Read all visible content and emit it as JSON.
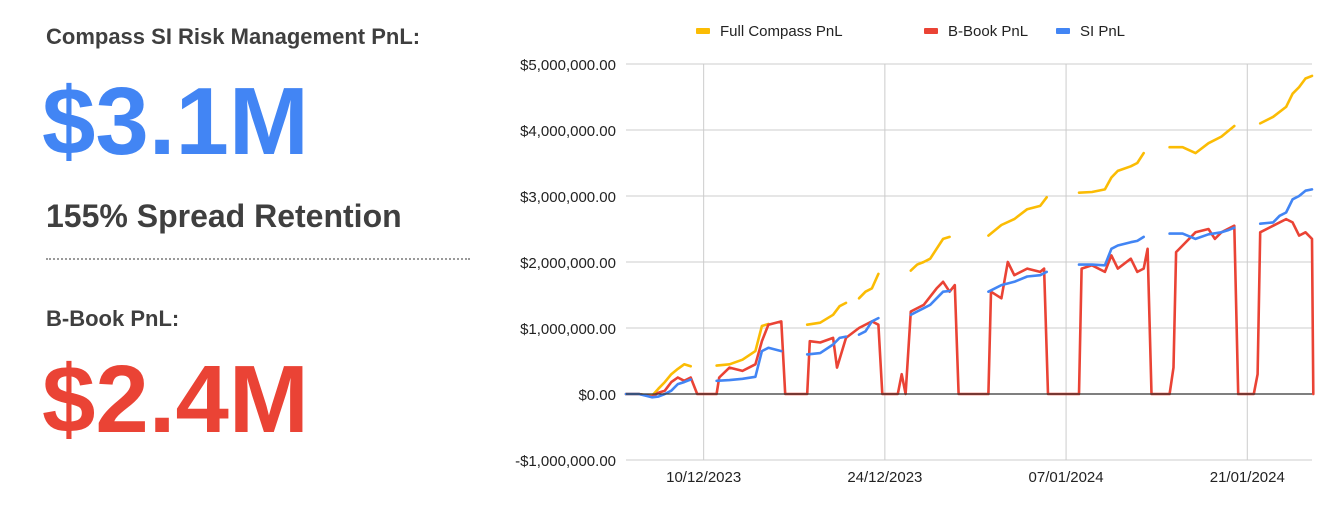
{
  "kpis": {
    "primary_label": "Compass SI Risk Management PnL:",
    "primary_value": "$3.1M",
    "primary_color": "#4285f4",
    "retention": "155% Spread Retention",
    "secondary_label": "B-Book PnL:",
    "secondary_value": "$2.4M",
    "secondary_color": "#ea4335"
  },
  "chart_data": {
    "type": "line",
    "title": "",
    "xlabel": "",
    "ylabel": "",
    "ylim": [
      -1000000,
      5000000
    ],
    "y_ticks": [
      -1000000,
      0,
      1000000,
      2000000,
      3000000,
      4000000,
      5000000
    ],
    "y_tick_labels": [
      "-$1,000,000.00",
      "$0.00",
      "$1,000,000.00",
      "$2,000,000.00",
      "$3,000,000.00",
      "$4,000,000.00",
      "$5,000,000.00"
    ],
    "x_range": [
      "2023-12-04",
      "2024-01-26"
    ],
    "x_ticks": [
      "2023-12-10",
      "2023-12-24",
      "2024-01-07",
      "2024-01-21"
    ],
    "x_tick_labels": [
      "10/12/2023",
      "24/12/2023",
      "07/01/2024",
      "21/01/2024"
    ],
    "grid": true,
    "legend_position": "top",
    "series": [
      {
        "name": "Full Compass PnL",
        "color": "#fbbc04",
        "points": [
          [
            [
              "2023-12-04",
              0
            ],
            [
              "2023-12-05",
              0
            ],
            [
              "2023-12-06",
              -30000
            ],
            [
              "2023-12-06.5",
              80000
            ],
            [
              "2023-12-07",
              180000
            ],
            [
              "2023-12-07.5",
              300000
            ],
            [
              "2023-12-08",
              380000
            ],
            [
              "2023-12-08.5",
              450000
            ],
            [
              "2023-12-09",
              420000
            ]
          ],
          [
            [
              "2023-12-11",
              430000
            ],
            [
              "2023-12-12",
              450000
            ],
            [
              "2023-12-13",
              520000
            ],
            [
              "2023-12-14",
              650000
            ],
            [
              "2023-12-14.5",
              1030000
            ],
            [
              "2023-12-15",
              1060000
            ]
          ],
          [
            [
              "2023-12-18",
              1050000
            ],
            [
              "2023-12-19",
              1080000
            ],
            [
              "2023-12-20",
              1200000
            ],
            [
              "2023-12-20.5",
              1330000
            ],
            [
              "2023-12-21",
              1380000
            ]
          ],
          [
            [
              "2023-12-22",
              1450000
            ],
            [
              "2023-12-22.5",
              1550000
            ],
            [
              "2023-12-23",
              1600000
            ],
            [
              "2023-12-23.5",
              1820000
            ]
          ],
          [
            [
              "2023-12-26",
              1870000
            ],
            [
              "2023-12-26.5",
              1960000
            ],
            [
              "2023-12-27",
              2000000
            ],
            [
              "2023-12-27.5",
              2050000
            ],
            [
              "2023-12-28",
              2200000
            ],
            [
              "2023-12-28.5",
              2350000
            ],
            [
              "2023-12-29",
              2380000
            ]
          ],
          [
            [
              "2024-01-01",
              2400000
            ],
            [
              "2024-01-02",
              2560000
            ],
            [
              "2024-01-03",
              2650000
            ],
            [
              "2024-01-04",
              2800000
            ],
            [
              "2024-01-05",
              2850000
            ],
            [
              "2024-01-05.5",
              2980000
            ]
          ],
          [
            [
              "2024-01-08",
              3050000
            ],
            [
              "2024-01-09",
              3060000
            ],
            [
              "2024-01-10",
              3100000
            ],
            [
              "2024-01-10.5",
              3280000
            ],
            [
              "2024-01-11",
              3380000
            ],
            [
              "2024-01-12",
              3450000
            ],
            [
              "2024-01-12.5",
              3500000
            ],
            [
              "2024-01-13",
              3650000
            ]
          ],
          [
            [
              "2024-01-15",
              3740000
            ],
            [
              "2024-01-16",
              3740000
            ],
            [
              "2024-01-17",
              3650000
            ],
            [
              "2024-01-18",
              3800000
            ],
            [
              "2024-01-19",
              3900000
            ],
            [
              "2024-01-19.5",
              3980000
            ],
            [
              "2024-01-20",
              4060000
            ]
          ],
          [
            [
              "2024-01-22",
              4100000
            ],
            [
              "2024-01-23",
              4200000
            ],
            [
              "2024-01-24",
              4350000
            ],
            [
              "2024-01-24.5",
              4550000
            ],
            [
              "2024-01-25",
              4650000
            ],
            [
              "2024-01-25.5",
              4780000
            ],
            [
              "2024-01-26",
              4820000
            ]
          ]
        ]
      },
      {
        "name": "B-Book PnL",
        "color": "#ea4335",
        "points": [
          [
            [
              "2023-12-04",
              0
            ],
            [
              "2023-12-05",
              0
            ],
            [
              "2023-12-06",
              -40000
            ],
            [
              "2023-12-06.5",
              20000
            ],
            [
              "2023-12-07",
              50000
            ],
            [
              "2023-12-07.5",
              180000
            ],
            [
              "2023-12-08",
              250000
            ],
            [
              "2023-12-08.5",
              200000
            ],
            [
              "2023-12-09",
              250000
            ],
            [
              "2023-12-09.5",
              0
            ],
            [
              "2023-12-10",
              0
            ],
            [
              "2023-12-11",
              0
            ],
            [
              "2023-12-11.2",
              250000
            ],
            [
              "2023-12-12",
              400000
            ],
            [
              "2023-12-13",
              350000
            ],
            [
              "2023-12-14",
              450000
            ],
            [
              "2023-12-14.5",
              800000
            ],
            [
              "2023-12-15",
              1050000
            ],
            [
              "2023-12-16",
              1100000
            ],
            [
              "2023-12-16.3",
              0
            ],
            [
              "2023-12-17",
              0
            ],
            [
              "2023-12-18",
              0
            ],
            [
              "2023-12-18.2",
              800000
            ],
            [
              "2023-12-19",
              780000
            ],
            [
              "2023-12-20",
              850000
            ],
            [
              "2023-12-20.3",
              400000
            ],
            [
              "2023-12-21",
              850000
            ],
            [
              "2023-12-22",
              1000000
            ],
            [
              "2023-12-23",
              1100000
            ],
            [
              "2023-12-23.5",
              1050000
            ],
            [
              "2023-12-23.8",
              0
            ],
            [
              "2023-12-24",
              0
            ],
            [
              "2023-12-25",
              0
            ],
            [
              "2023-12-25.3",
              300000
            ],
            [
              "2023-12-25.6",
              0
            ],
            [
              "2023-12-26",
              1250000
            ],
            [
              "2023-12-27",
              1350000
            ],
            [
              "2023-12-28",
              1600000
            ],
            [
              "2023-12-28.5",
              1700000
            ],
            [
              "2023-12-29",
              1550000
            ],
            [
              "2023-12-29.4",
              1650000
            ],
            [
              "2023-12-29.7",
              0
            ],
            [
              "2023-12-30",
              0
            ],
            [
              "2024-01-01",
              0
            ],
            [
              "2024-01-01.2",
              1550000
            ],
            [
              "2024-01-02",
              1450000
            ],
            [
              "2024-01-02.5",
              2000000
            ],
            [
              "2024-01-03",
              1800000
            ],
            [
              "2024-01-04",
              1900000
            ],
            [
              "2024-01-05",
              1850000
            ],
            [
              "2024-01-05.3",
              1900000
            ],
            [
              "2024-01-05.6",
              0
            ],
            [
              "2024-01-06",
              0
            ],
            [
              "2024-01-07",
              0
            ],
            [
              "2024-01-08",
              0
            ],
            [
              "2024-01-08.2",
              1900000
            ],
            [
              "2024-01-09",
              1950000
            ],
            [
              "2024-01-10",
              1850000
            ],
            [
              "2024-01-10.5",
              2100000
            ],
            [
              "2024-01-11",
              1900000
            ],
            [
              "2024-01-12",
              2050000
            ],
            [
              "2024-01-12.5",
              1850000
            ],
            [
              "2024-01-13",
              1900000
            ],
            [
              "2024-01-13.3",
              2200000
            ],
            [
              "2024-01-13.6",
              0
            ],
            [
              "2024-01-14",
              0
            ],
            [
              "2024-01-15",
              0
            ],
            [
              "2024-01-15.3",
              400000
            ],
            [
              "2024-01-15.5",
              2150000
            ],
            [
              "2024-01-16",
              2250000
            ],
            [
              "2024-01-17",
              2450000
            ],
            [
              "2024-01-18",
              2500000
            ],
            [
              "2024-01-18.5",
              2350000
            ],
            [
              "2024-01-19",
              2450000
            ],
            [
              "2024-01-20",
              2550000
            ],
            [
              "2024-01-20.3",
              0
            ],
            [
              "2024-01-21",
              0
            ],
            [
              "2024-01-21.5",
              0
            ],
            [
              "2024-01-21.8",
              300000
            ],
            [
              "2024-01-22",
              2450000
            ],
            [
              "2024-01-23",
              2550000
            ],
            [
              "2024-01-24",
              2650000
            ],
            [
              "2024-01-24.5",
              2600000
            ],
            [
              "2024-01-25",
              2400000
            ],
            [
              "2024-01-25.5",
              2450000
            ],
            [
              "2024-01-26",
              2350000
            ],
            [
              "2024-01-26.1",
              0
            ]
          ]
        ]
      },
      {
        "name": "SI PnL",
        "color": "#4285f4",
        "points": [
          [
            [
              "2023-12-04",
              0
            ],
            [
              "2023-12-05",
              0
            ],
            [
              "2023-12-06",
              -50000
            ],
            [
              "2023-12-06.5",
              -40000
            ],
            [
              "2023-12-07",
              0
            ],
            [
              "2023-12-07.5",
              50000
            ],
            [
              "2023-12-08",
              150000
            ],
            [
              "2023-12-08.5",
              180000
            ],
            [
              "2023-12-09",
              220000
            ]
          ],
          [
            [
              "2023-12-11",
              200000
            ],
            [
              "2023-12-12",
              210000
            ],
            [
              "2023-12-13",
              230000
            ],
            [
              "2023-12-14",
              260000
            ],
            [
              "2023-12-14.5",
              650000
            ],
            [
              "2023-12-15",
              700000
            ],
            [
              "2023-12-16",
              650000
            ]
          ],
          [
            [
              "2023-12-18",
              600000
            ],
            [
              "2023-12-19",
              620000
            ],
            [
              "2023-12-20",
              750000
            ],
            [
              "2023-12-20.5",
              850000
            ],
            [
              "2023-12-21",
              870000
            ]
          ],
          [
            [
              "2023-12-22",
              900000
            ],
            [
              "2023-12-22.5",
              950000
            ],
            [
              "2023-12-23",
              1100000
            ],
            [
              "2023-12-23.5",
              1150000
            ]
          ],
          [
            [
              "2023-12-26",
              1200000
            ],
            [
              "2023-12-26.5",
              1250000
            ],
            [
              "2023-12-27",
              1300000
            ],
            [
              "2023-12-27.5",
              1350000
            ],
            [
              "2023-12-28",
              1450000
            ],
            [
              "2023-12-28.5",
              1550000
            ],
            [
              "2023-12-29",
              1560000
            ]
          ],
          [
            [
              "2024-01-01",
              1550000
            ],
            [
              "2024-01-02",
              1650000
            ],
            [
              "2024-01-03",
              1700000
            ],
            [
              "2024-01-04",
              1780000
            ],
            [
              "2024-01-05",
              1800000
            ],
            [
              "2024-01-05.5",
              1850000
            ]
          ],
          [
            [
              "2024-01-08",
              1960000
            ],
            [
              "2024-01-09",
              1960000
            ],
            [
              "2024-01-10",
              1950000
            ],
            [
              "2024-01-10.5",
              2200000
            ],
            [
              "2024-01-11",
              2250000
            ],
            [
              "2024-01-12",
              2300000
            ],
            [
              "2024-01-12.5",
              2320000
            ],
            [
              "2024-01-13",
              2380000
            ]
          ],
          [
            [
              "2024-01-15",
              2430000
            ],
            [
              "2024-01-16",
              2430000
            ],
            [
              "2024-01-17",
              2350000
            ],
            [
              "2024-01-18",
              2420000
            ],
            [
              "2024-01-19",
              2450000
            ],
            [
              "2024-01-19.5",
              2480000
            ],
            [
              "2024-01-20",
              2520000
            ]
          ],
          [
            [
              "2024-01-22",
              2580000
            ],
            [
              "2024-01-23",
              2600000
            ],
            [
              "2024-01-23.5",
              2700000
            ],
            [
              "2024-01-24",
              2750000
            ],
            [
              "2024-01-24.5",
              2950000
            ],
            [
              "2024-01-25",
              3000000
            ],
            [
              "2024-01-25.5",
              3080000
            ],
            [
              "2024-01-26",
              3100000
            ]
          ]
        ]
      }
    ]
  }
}
